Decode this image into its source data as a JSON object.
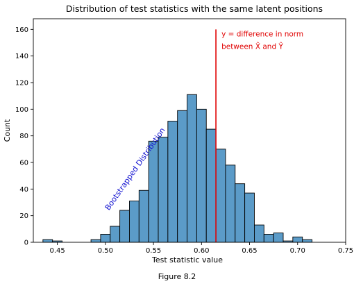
{
  "caption": "Figure 8.2",
  "chart_data": {
    "type": "bar",
    "title": "Distribution of test statistics with the same latent positions",
    "xlabel": "Test statistic value",
    "ylabel": "Count",
    "xlim": [
      0.425,
      0.75
    ],
    "ylim": [
      0,
      168
    ],
    "xticks": [
      0.45,
      0.5,
      0.55,
      0.6,
      0.65,
      0.7,
      0.75
    ],
    "xtick_labels": [
      "0.45",
      "0.50",
      "0.55",
      "0.60",
      "0.65",
      "0.70",
      "0.75"
    ],
    "yticks": [
      0,
      20,
      40,
      60,
      80,
      100,
      120,
      140,
      160
    ],
    "ytick_labels": [
      "0",
      "20",
      "40",
      "60",
      "80",
      "100",
      "120",
      "140",
      "160"
    ],
    "bar_color": "#5b9bc8",
    "bin_width": 0.01,
    "bins": [
      {
        "x0": 0.435,
        "count": 2
      },
      {
        "x0": 0.445,
        "count": 1
      },
      {
        "x0": 0.455,
        "count": 0
      },
      {
        "x0": 0.465,
        "count": 0
      },
      {
        "x0": 0.475,
        "count": 0
      },
      {
        "x0": 0.485,
        "count": 2
      },
      {
        "x0": 0.495,
        "count": 6
      },
      {
        "x0": 0.505,
        "count": 12
      },
      {
        "x0": 0.515,
        "count": 24
      },
      {
        "x0": 0.525,
        "count": 31
      },
      {
        "x0": 0.535,
        "count": 39
      },
      {
        "x0": 0.545,
        "count": 76
      },
      {
        "x0": 0.555,
        "count": 79
      },
      {
        "x0": 0.565,
        "count": 91
      },
      {
        "x0": 0.575,
        "count": 99
      },
      {
        "x0": 0.585,
        "count": 111
      },
      {
        "x0": 0.595,
        "count": 100
      },
      {
        "x0": 0.605,
        "count": 85
      },
      {
        "x0": 0.615,
        "count": 70
      },
      {
        "x0": 0.625,
        "count": 58
      },
      {
        "x0": 0.635,
        "count": 44
      },
      {
        "x0": 0.645,
        "count": 37
      },
      {
        "x0": 0.655,
        "count": 13
      },
      {
        "x0": 0.665,
        "count": 6
      },
      {
        "x0": 0.675,
        "count": 7
      },
      {
        "x0": 0.685,
        "count": 1
      },
      {
        "x0": 0.695,
        "count": 4
      },
      {
        "x0": 0.705,
        "count": 2
      }
    ],
    "reference_line": {
      "x": 0.615,
      "y_range": [
        0,
        160
      ],
      "color": "#e00000",
      "label_line1": "y = difference in norm",
      "label_line2_prefix": "between ",
      "label_xhat": "X̂",
      "label_and": " and ",
      "label_yhat": "Ŷ"
    },
    "annotation": {
      "text": "Bootstrapped Distribution",
      "color": "#1010d0",
      "x": 0.5,
      "y": 20,
      "angle": -55
    }
  }
}
